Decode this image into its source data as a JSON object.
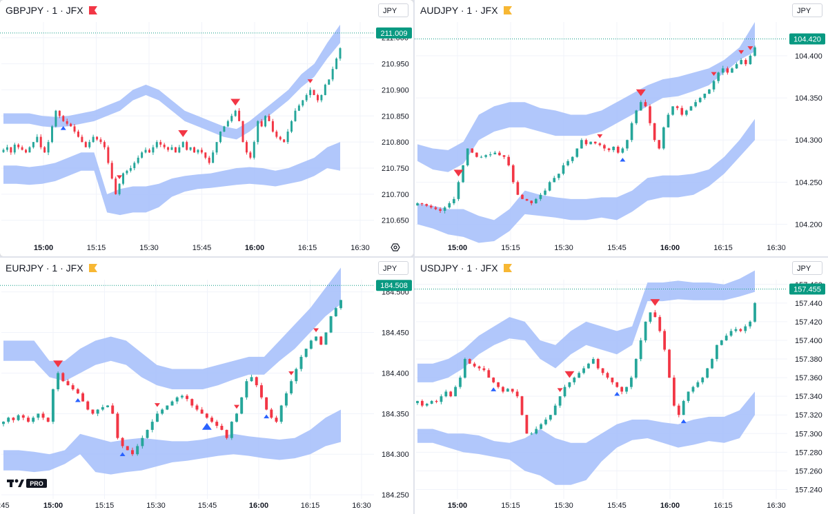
{
  "colors": {
    "up": "#26a69a",
    "down": "#f23645",
    "band": "#a3bdfa",
    "signal_up": "#2962ff",
    "signal_down": "#f23645",
    "price_tag": "#089981",
    "grid": "#f0f3fa",
    "axis_text": "#131722",
    "flag_red": "#f23645",
    "flag_yellow": "#f7b733"
  },
  "time_labels": [
    "15:00",
    "15:15",
    "15:30",
    "15:45",
    "16:00",
    "16:15",
    "16:30"
  ],
  "edge_time_label": ":45",
  "logo": {
    "text": "PRO",
    "icon": "tradingview-logo-icon"
  },
  "chart_data": [
    {
      "type": "candlestick",
      "symbol": "GBPJPY",
      "title": "GBPJPY · 1 · JFX",
      "flag": "red",
      "currency": "JPY",
      "active": true,
      "last_price": "211.009",
      "ylim": [
        210.61,
        211.03
      ],
      "y_ticks": [
        "211.000",
        "210.950",
        "210.900",
        "210.850",
        "210.800",
        "210.750",
        "210.700",
        "210.650"
      ],
      "y_tick_values": [
        211.0,
        210.95,
        210.9,
        210.85,
        210.8,
        210.75,
        210.7,
        210.65
      ],
      "closes": [
        210.785,
        210.79,
        210.78,
        210.795,
        210.79,
        210.785,
        210.78,
        210.79,
        210.8,
        210.81,
        210.79,
        210.78,
        210.8,
        210.83,
        210.86,
        210.85,
        210.84,
        210.835,
        210.83,
        210.82,
        210.81,
        210.8,
        210.79,
        210.8,
        210.81,
        210.805,
        210.8,
        210.79,
        210.76,
        210.73,
        210.7,
        210.72,
        210.74,
        210.745,
        210.75,
        210.76,
        210.77,
        210.78,
        210.785,
        210.78,
        210.79,
        210.8,
        210.795,
        210.79,
        210.785,
        210.79,
        210.78,
        210.79,
        210.8,
        210.785,
        210.79,
        210.78,
        210.785,
        210.78,
        210.77,
        210.76,
        210.78,
        210.8,
        210.82,
        210.83,
        210.84,
        210.85,
        210.86,
        210.84,
        210.8,
        210.78,
        210.77,
        210.8,
        210.84,
        210.83,
        210.85,
        210.84,
        210.82,
        210.81,
        210.805,
        210.8,
        210.82,
        210.84,
        210.86,
        210.87,
        210.88,
        210.89,
        210.9,
        210.89,
        210.88,
        210.89,
        210.91,
        210.92,
        210.94,
        210.96,
        210.98
      ],
      "band_upper_top": [
        210.855,
        210.855,
        210.855,
        210.85,
        210.848,
        210.85,
        210.855,
        210.86,
        210.87,
        210.88,
        210.9,
        210.91,
        210.9,
        210.88,
        210.86,
        210.85,
        210.84,
        210.83,
        210.825,
        210.84,
        210.86,
        210.88,
        210.9,
        210.93,
        210.95,
        210.99,
        211.025
      ],
      "band_upper_bot": [
        210.835,
        210.835,
        210.835,
        210.83,
        210.828,
        210.83,
        210.835,
        210.84,
        210.85,
        210.86,
        210.88,
        210.89,
        210.88,
        210.86,
        210.84,
        210.83,
        210.82,
        210.81,
        210.805,
        210.82,
        210.84,
        210.86,
        210.88,
        210.905,
        210.925,
        210.96,
        210.99
      ],
      "band_lower_top": [
        210.755,
        210.755,
        210.752,
        210.755,
        210.76,
        210.77,
        210.78,
        210.78,
        210.7,
        210.71,
        210.715,
        210.715,
        210.72,
        210.73,
        210.735,
        210.738,
        210.74,
        210.745,
        210.75,
        210.752,
        210.75,
        210.745,
        210.75,
        210.76,
        210.77,
        210.79,
        210.8
      ],
      "band_lower_bot": [
        210.72,
        210.72,
        210.718,
        210.72,
        210.725,
        210.735,
        210.745,
        210.745,
        210.665,
        210.66,
        210.665,
        210.665,
        210.675,
        210.695,
        210.705,
        210.71,
        210.712,
        210.715,
        210.718,
        210.72,
        210.718,
        210.715,
        210.72,
        210.725,
        210.735,
        210.75,
        210.745
      ],
      "signals": [
        {
          "i": 16,
          "dir": "up",
          "size": "small"
        },
        {
          "i": 31,
          "dir": "down",
          "size": "small"
        },
        {
          "i": 48,
          "dir": "down",
          "size": "large"
        },
        {
          "i": 62,
          "dir": "down",
          "size": "large"
        },
        {
          "i": 82,
          "dir": "down",
          "size": "small"
        }
      ]
    },
    {
      "type": "candlestick",
      "symbol": "AUDJPY",
      "title": "AUDJPY · 1 · JFX",
      "flag": "yellow",
      "currency": "JPY",
      "active": false,
      "last_price": "104.420",
      "ylim": [
        104.18,
        104.44
      ],
      "y_ticks": [
        "104.400",
        "104.350",
        "104.300",
        "104.250",
        "104.200"
      ],
      "y_tick_values": [
        104.4,
        104.35,
        104.3,
        104.25,
        104.2
      ],
      "closes": [
        104.225,
        104.224,
        104.222,
        104.22,
        104.218,
        104.216,
        104.22,
        104.225,
        104.23,
        104.25,
        104.27,
        104.29,
        104.285,
        104.28,
        104.28,
        104.282,
        104.283,
        104.285,
        104.282,
        104.28,
        104.27,
        104.25,
        104.235,
        104.23,
        104.228,
        104.225,
        104.23,
        104.235,
        104.24,
        104.25,
        104.255,
        104.26,
        104.27,
        104.275,
        104.28,
        104.29,
        104.3,
        104.295,
        104.298,
        104.296,
        104.294,
        104.29,
        104.288,
        104.292,
        104.285,
        104.29,
        104.3,
        104.32,
        104.335,
        104.345,
        104.34,
        104.32,
        104.3,
        104.29,
        104.315,
        104.33,
        104.34,
        104.338,
        104.33,
        104.335,
        104.34,
        104.345,
        104.35,
        104.355,
        104.36,
        104.37,
        104.38,
        104.385,
        104.38,
        104.385,
        104.39,
        104.395,
        104.39,
        104.4,
        104.41
      ],
      "band_upper_top": [
        104.295,
        104.29,
        104.288,
        104.298,
        104.33,
        104.34,
        104.345,
        104.345,
        104.338,
        104.335,
        104.33,
        104.33,
        104.335,
        104.345,
        104.355,
        104.365,
        104.372,
        104.375,
        104.38,
        104.385,
        104.395,
        104.41,
        104.44
      ],
      "band_upper_bot": [
        104.275,
        104.265,
        104.262,
        104.272,
        104.3,
        104.31,
        104.315,
        104.315,
        104.31,
        104.305,
        104.305,
        104.305,
        104.31,
        104.32,
        104.33,
        104.34,
        104.35,
        104.352,
        104.358,
        104.365,
        104.38,
        104.395,
        104.405
      ],
      "band_lower_top": [
        104.225,
        104.222,
        104.218,
        104.218,
        104.21,
        104.205,
        104.218,
        104.24,
        104.235,
        104.232,
        104.23,
        104.23,
        104.232,
        104.232,
        104.24,
        104.255,
        104.258,
        104.258,
        104.26,
        104.265,
        104.28,
        104.3,
        104.325
      ],
      "band_lower_bot": [
        104.2,
        104.195,
        104.188,
        104.185,
        104.178,
        104.18,
        104.192,
        104.212,
        104.21,
        104.208,
        104.205,
        104.205,
        104.208,
        104.205,
        104.215,
        104.228,
        104.232,
        104.232,
        104.235,
        104.245,
        104.26,
        104.28,
        104.3
      ],
      "signals": [
        {
          "i": 9,
          "dir": "down",
          "size": "large"
        },
        {
          "i": 40,
          "dir": "down",
          "size": "small"
        },
        {
          "i": 45,
          "dir": "up",
          "size": "small"
        },
        {
          "i": 49,
          "dir": "down",
          "size": "large"
        },
        {
          "i": 65,
          "dir": "down",
          "size": "small"
        },
        {
          "i": 71,
          "dir": "down",
          "size": "small"
        },
        {
          "i": 73,
          "dir": "down",
          "size": "small"
        }
      ]
    },
    {
      "type": "candlestick",
      "symbol": "EURJPY",
      "title": "EURJPY · 1 · JFX",
      "flag": "yellow",
      "currency": "JPY",
      "active": false,
      "last_price": "184.508",
      "ylim": [
        184.245,
        184.515
      ],
      "y_ticks": [
        "184.500",
        "184.450",
        "184.400",
        "184.350",
        "184.300",
        "184.250"
      ],
      "y_tick_values": [
        184.5,
        184.45,
        184.4,
        184.35,
        184.3,
        184.25
      ],
      "closes": [
        184.34,
        184.345,
        184.342,
        184.348,
        184.345,
        184.34,
        184.345,
        184.35,
        184.345,
        184.34,
        184.38,
        184.4,
        184.39,
        184.385,
        184.38,
        184.375,
        184.365,
        184.355,
        184.35,
        184.355,
        184.358,
        184.36,
        184.35,
        184.32,
        184.31,
        184.305,
        184.3,
        184.31,
        184.32,
        184.33,
        184.34,
        184.35,
        184.355,
        184.36,
        184.365,
        184.37,
        184.372,
        184.368,
        184.36,
        184.355,
        184.35,
        184.345,
        184.34,
        184.335,
        184.33,
        184.32,
        184.34,
        184.35,
        184.37,
        184.39,
        184.395,
        184.385,
        184.37,
        184.355,
        184.345,
        184.34,
        184.36,
        184.375,
        184.39,
        184.405,
        184.42,
        184.43,
        184.44,
        184.445,
        184.435,
        184.45,
        184.47,
        184.48,
        184.49
      ],
      "band_upper_top": [
        184.44,
        184.44,
        184.44,
        184.415,
        184.415,
        184.43,
        184.44,
        184.445,
        184.44,
        184.425,
        184.41,
        184.405,
        184.405,
        184.405,
        184.41,
        184.415,
        184.42,
        184.42,
        184.44,
        184.46,
        184.48,
        184.505,
        184.53
      ],
      "band_upper_bot": [
        184.415,
        184.415,
        184.415,
        184.395,
        184.39,
        184.4,
        184.41,
        184.415,
        184.41,
        184.395,
        184.385,
        184.38,
        184.38,
        184.38,
        184.385,
        184.392,
        184.398,
        184.398,
        184.415,
        184.43,
        184.45,
        184.47,
        184.485
      ],
      "band_lower_top": [
        184.305,
        184.305,
        184.303,
        184.3,
        184.305,
        184.325,
        184.32,
        184.315,
        184.318,
        184.32,
        184.318,
        184.316,
        184.316,
        184.318,
        184.322,
        184.325,
        184.322,
        184.32,
        184.318,
        184.32,
        184.33,
        184.345,
        184.355
      ],
      "band_lower_bot": [
        184.28,
        184.28,
        184.278,
        184.28,
        184.288,
        184.3,
        184.278,
        184.275,
        184.278,
        184.28,
        184.285,
        184.29,
        184.292,
        184.295,
        184.298,
        184.3,
        184.298,
        184.295,
        184.293,
        184.295,
        184.3,
        184.31,
        184.315
      ],
      "signals": [
        {
          "i": 11,
          "dir": "down",
          "size": "large"
        },
        {
          "i": 15,
          "dir": "up",
          "size": "small"
        },
        {
          "i": 24,
          "dir": "up",
          "size": "small"
        },
        {
          "i": 31,
          "dir": "down",
          "size": "small"
        },
        {
          "i": 41,
          "dir": "up",
          "size": "large"
        },
        {
          "i": 47,
          "dir": "down",
          "size": "small"
        },
        {
          "i": 53,
          "dir": "up",
          "size": "small"
        },
        {
          "i": 58,
          "dir": "down",
          "size": "small"
        },
        {
          "i": 63,
          "dir": "down",
          "size": "small"
        }
      ]
    },
    {
      "type": "candlestick",
      "symbol": "USDJPY",
      "title": "USDJPY · 1 · JFX",
      "flag": "yellow",
      "currency": "JPY",
      "active": false,
      "last_price": "157.455",
      "ylim": [
        157.23,
        157.465
      ],
      "y_ticks": [
        "157.460",
        "157.440",
        "157.420",
        "157.400",
        "157.380",
        "157.360",
        "157.340",
        "157.320",
        "157.300",
        "157.280",
        "157.260",
        "157.240"
      ],
      "y_tick_values": [
        157.46,
        157.44,
        157.42,
        157.4,
        157.38,
        157.36,
        157.34,
        157.32,
        157.3,
        157.28,
        157.26,
        157.24
      ],
      "closes": [
        157.335,
        157.33,
        157.332,
        157.335,
        157.334,
        157.34,
        157.345,
        157.34,
        157.35,
        157.36,
        157.38,
        157.375,
        157.372,
        157.37,
        157.368,
        157.36,
        157.355,
        157.35,
        157.345,
        157.348,
        157.345,
        157.34,
        157.32,
        157.3,
        157.3,
        157.305,
        157.31,
        157.315,
        157.32,
        157.33,
        157.34,
        157.35,
        157.355,
        157.36,
        157.365,
        157.37,
        157.375,
        157.38,
        157.37,
        157.365,
        157.36,
        157.355,
        157.35,
        157.345,
        157.35,
        157.36,
        157.38,
        157.4,
        157.42,
        157.43,
        157.425,
        157.41,
        157.39,
        157.36,
        157.33,
        157.32,
        157.335,
        157.345,
        157.35,
        157.355,
        157.36,
        157.37,
        157.38,
        157.395,
        157.4,
        157.405,
        157.41,
        157.412,
        157.41,
        157.415,
        157.42,
        157.44
      ],
      "band_upper_top": [
        157.375,
        157.375,
        157.38,
        157.39,
        157.405,
        157.415,
        157.425,
        157.42,
        157.4,
        157.395,
        157.41,
        157.42,
        157.415,
        157.41,
        157.415,
        157.462,
        157.462,
        157.464,
        157.462,
        157.462,
        157.46,
        157.466,
        157.475
      ],
      "band_upper_bot": [
        157.355,
        157.355,
        157.36,
        157.37,
        157.385,
        157.395,
        157.402,
        157.4,
        157.38,
        157.37,
        157.385,
        157.395,
        157.39,
        157.385,
        157.395,
        157.442,
        157.442,
        157.444,
        157.443,
        157.443,
        157.443,
        157.447,
        157.452
      ],
      "band_lower_top": [
        157.305,
        157.305,
        157.3,
        157.3,
        157.298,
        157.292,
        157.29,
        157.295,
        157.305,
        157.295,
        157.29,
        157.29,
        157.3,
        157.31,
        157.315,
        157.315,
        157.312,
        157.31,
        157.315,
        157.318,
        157.318,
        157.325,
        157.345
      ],
      "band_lower_bot": [
        157.29,
        157.29,
        157.285,
        157.28,
        157.278,
        157.275,
        157.272,
        157.26,
        157.255,
        157.245,
        157.245,
        157.25,
        157.27,
        157.285,
        157.293,
        157.295,
        157.29,
        157.285,
        157.288,
        157.292,
        157.29,
        157.295,
        157.32
      ],
      "signals": [
        {
          "i": 16,
          "dir": "up",
          "size": "small"
        },
        {
          "i": 30,
          "dir": "down",
          "size": "small"
        },
        {
          "i": 32,
          "dir": "down",
          "size": "large"
        },
        {
          "i": 42,
          "dir": "up",
          "size": "small"
        },
        {
          "i": 50,
          "dir": "down",
          "size": "large"
        },
        {
          "i": 56,
          "dir": "up",
          "size": "small"
        }
      ]
    }
  ]
}
